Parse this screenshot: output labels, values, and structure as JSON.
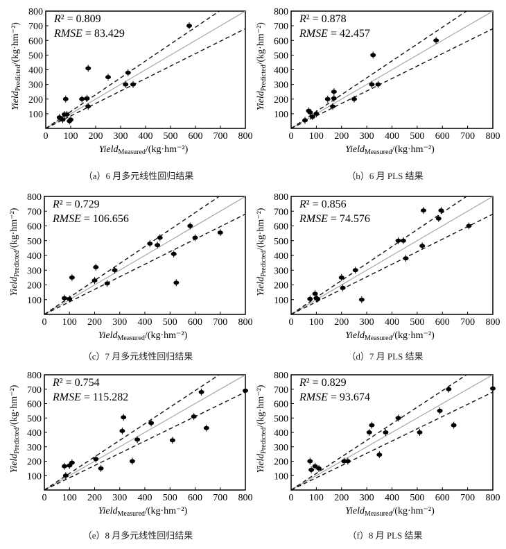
{
  "chart_data": [
    {
      "type": "scatter",
      "caption": "（a）6 月多元线性回归结果",
      "r2_label": "R² = 0.809",
      "rmse_label": "RMSE = 83.429",
      "ylabel": "Yield_Predicted/(kg·hm⁻²)",
      "xlabel": "Yield_Measured/(kg·hm⁻²)",
      "xlim": [
        0,
        800
      ],
      "ylim": [
        0,
        800
      ],
      "x_ticks": [
        0,
        100,
        200,
        300,
        400,
        500,
        600,
        700,
        800
      ],
      "y_ticks": [
        100,
        200,
        300,
        400,
        500,
        600,
        700,
        800
      ],
      "points": [
        [
          55,
          75
        ],
        [
          68,
          60
        ],
        [
          75,
          95
        ],
        [
          85,
          95
        ],
        [
          80,
          200
        ],
        [
          95,
          50
        ],
        [
          100,
          60
        ],
        [
          145,
          200
        ],
        [
          165,
          205
        ],
        [
          170,
          150
        ],
        [
          170,
          410
        ],
        [
          250,
          350
        ],
        [
          320,
          300
        ],
        [
          330,
          380
        ],
        [
          350,
          300
        ],
        [
          575,
          700
        ]
      ],
      "reference_lines": [
        {
          "slope": 1,
          "style": "solid-gray"
        },
        {
          "slope": 1.15,
          "style": "dashed"
        },
        {
          "slope": 0.85,
          "style": "dashed"
        }
      ]
    },
    {
      "type": "scatter",
      "caption": "（b）6 月 PLS 结果",
      "r2_label": "R² = 0.878",
      "rmse_label": "RMSE = 42.457",
      "ylabel": "Yield_Predicted/(kg·hm⁻²)",
      "xlabel": "Yield_Measured/(kg·hm⁻²)",
      "xlim": [
        0,
        800
      ],
      "ylim": [
        0,
        800
      ],
      "x_ticks": [
        0,
        100,
        200,
        300,
        400,
        500,
        600,
        700,
        800
      ],
      "y_ticks": [
        100,
        200,
        300,
        400,
        500,
        600,
        700,
        800
      ],
      "points": [
        [
          55,
          55
        ],
        [
          70,
          120
        ],
        [
          75,
          110
        ],
        [
          85,
          80
        ],
        [
          100,
          100
        ],
        [
          145,
          200
        ],
        [
          165,
          150
        ],
        [
          170,
          205
        ],
        [
          170,
          250
        ],
        [
          250,
          200
        ],
        [
          320,
          300
        ],
        [
          325,
          500
        ],
        [
          345,
          300
        ],
        [
          575,
          600
        ]
      ],
      "reference_lines": [
        {
          "slope": 1,
          "style": "solid-gray"
        },
        {
          "slope": 1.15,
          "style": "dashed"
        },
        {
          "slope": 0.85,
          "style": "dashed"
        }
      ]
    },
    {
      "type": "scatter",
      "caption": "（c）7 月多元线性回归结果",
      "r2_label": "R² = 0.729",
      "rmse_label": "RMSE = 106.656",
      "ylabel": "Yield_Predicted/(kg·hm⁻²)",
      "xlabel": "Yield_Measured/(kg·hm⁻²)",
      "xlim": [
        0,
        800
      ],
      "ylim": [
        0,
        800
      ],
      "x_ticks": [
        0,
        100,
        200,
        300,
        400,
        500,
        600,
        700,
        800
      ],
      "y_ticks": [
        100,
        200,
        300,
        400,
        500,
        600,
        700,
        800
      ],
      "points": [
        [
          80,
          110
        ],
        [
          100,
          105
        ],
        [
          110,
          250
        ],
        [
          200,
          230
        ],
        [
          205,
          320
        ],
        [
          250,
          210
        ],
        [
          280,
          300
        ],
        [
          420,
          480
        ],
        [
          450,
          470
        ],
        [
          460,
          520
        ],
        [
          515,
          410
        ],
        [
          525,
          215
        ],
        [
          580,
          600
        ],
        [
          600,
          520
        ],
        [
          700,
          555
        ]
      ],
      "reference_lines": [
        {
          "slope": 1,
          "style": "solid-gray"
        },
        {
          "slope": 1.15,
          "style": "dashed"
        },
        {
          "slope": 0.85,
          "style": "dashed"
        }
      ]
    },
    {
      "type": "scatter",
      "caption": "（d）7 月 PLS 结果",
      "r2_label": "R² = 0.856",
      "rmse_label": "RMSE = 74.576",
      "ylabel": "Yield_Predicted/(kg·hm⁻²)",
      "xlabel": "Yield_Measured/(kg·hm⁻²)",
      "xlim": [
        0,
        800
      ],
      "ylim": [
        0,
        800
      ],
      "x_ticks": [
        0,
        100,
        200,
        300,
        400,
        500,
        600,
        700,
        800
      ],
      "y_ticks": [
        100,
        200,
        300,
        400,
        500,
        600,
        700,
        800
      ],
      "points": [
        [
          75,
          105
        ],
        [
          95,
          140
        ],
        [
          100,
          110
        ],
        [
          105,
          105
        ],
        [
          200,
          250
        ],
        [
          205,
          180
        ],
        [
          255,
          300
        ],
        [
          280,
          100
        ],
        [
          425,
          500
        ],
        [
          445,
          500
        ],
        [
          455,
          380
        ],
        [
          520,
          465
        ],
        [
          525,
          705
        ],
        [
          585,
          650
        ],
        [
          595,
          705
        ],
        [
          705,
          600
        ]
      ],
      "reference_lines": [
        {
          "slope": 1,
          "style": "solid-gray"
        },
        {
          "slope": 1.15,
          "style": "dashed"
        },
        {
          "slope": 0.85,
          "style": "dashed"
        }
      ]
    },
    {
      "type": "scatter",
      "caption": "（e）8 月多元线性回归结果",
      "r2_label": "R² = 0.754",
      "rmse_label": "RMSE = 115.282",
      "ylabel": "Yield_Predicted/(kg·hm⁻²)",
      "xlabel": "Yield_Measured/(kg·hm⁻²)",
      "xlim": [
        0,
        800
      ],
      "ylim": [
        0,
        800
      ],
      "x_ticks": [
        0,
        100,
        200,
        300,
        400,
        500,
        600,
        700,
        800
      ],
      "y_ticks": [
        100,
        200,
        300,
        400,
        500,
        600,
        700,
        800
      ],
      "points": [
        [
          80,
          165
        ],
        [
          85,
          100
        ],
        [
          100,
          170
        ],
        [
          110,
          190
        ],
        [
          205,
          215
        ],
        [
          225,
          150
        ],
        [
          310,
          410
        ],
        [
          315,
          505
        ],
        [
          350,
          200
        ],
        [
          370,
          350
        ],
        [
          425,
          465
        ],
        [
          510,
          345
        ],
        [
          595,
          510
        ],
        [
          625,
          680
        ],
        [
          645,
          430
        ],
        [
          800,
          690
        ]
      ],
      "reference_lines": [
        {
          "slope": 1,
          "style": "solid-gray"
        },
        {
          "slope": 1.15,
          "style": "dashed"
        },
        {
          "slope": 0.85,
          "style": "dashed"
        }
      ]
    },
    {
      "type": "scatter",
      "caption": "（f）8 月 PLS 结果",
      "r2_label": "R² = 0.829",
      "rmse_label": "RMSE = 93.674",
      "ylabel": "Yield_Predicted/(kg·hm⁻²)",
      "xlabel": "Yield_Measured/(kg·hm⁻²)",
      "xlim": [
        0,
        800
      ],
      "ylim": [
        0,
        800
      ],
      "x_ticks": [
        0,
        100,
        200,
        300,
        400,
        500,
        600,
        700,
        800
      ],
      "y_ticks": [
        100,
        200,
        300,
        400,
        500,
        600,
        700,
        800
      ],
      "points": [
        [
          75,
          200
        ],
        [
          80,
          140
        ],
        [
          95,
          165
        ],
        [
          110,
          150
        ],
        [
          210,
          200
        ],
        [
          225,
          200
        ],
        [
          310,
          400
        ],
        [
          320,
          450
        ],
        [
          350,
          245
        ],
        [
          375,
          400
        ],
        [
          425,
          500
        ],
        [
          510,
          400
        ],
        [
          590,
          550
        ],
        [
          625,
          700
        ],
        [
          645,
          450
        ],
        [
          800,
          705
        ]
      ],
      "reference_lines": [
        {
          "slope": 1,
          "style": "solid-gray"
        },
        {
          "slope": 1.15,
          "style": "dashed"
        },
        {
          "slope": 0.85,
          "style": "dashed"
        }
      ]
    }
  ]
}
